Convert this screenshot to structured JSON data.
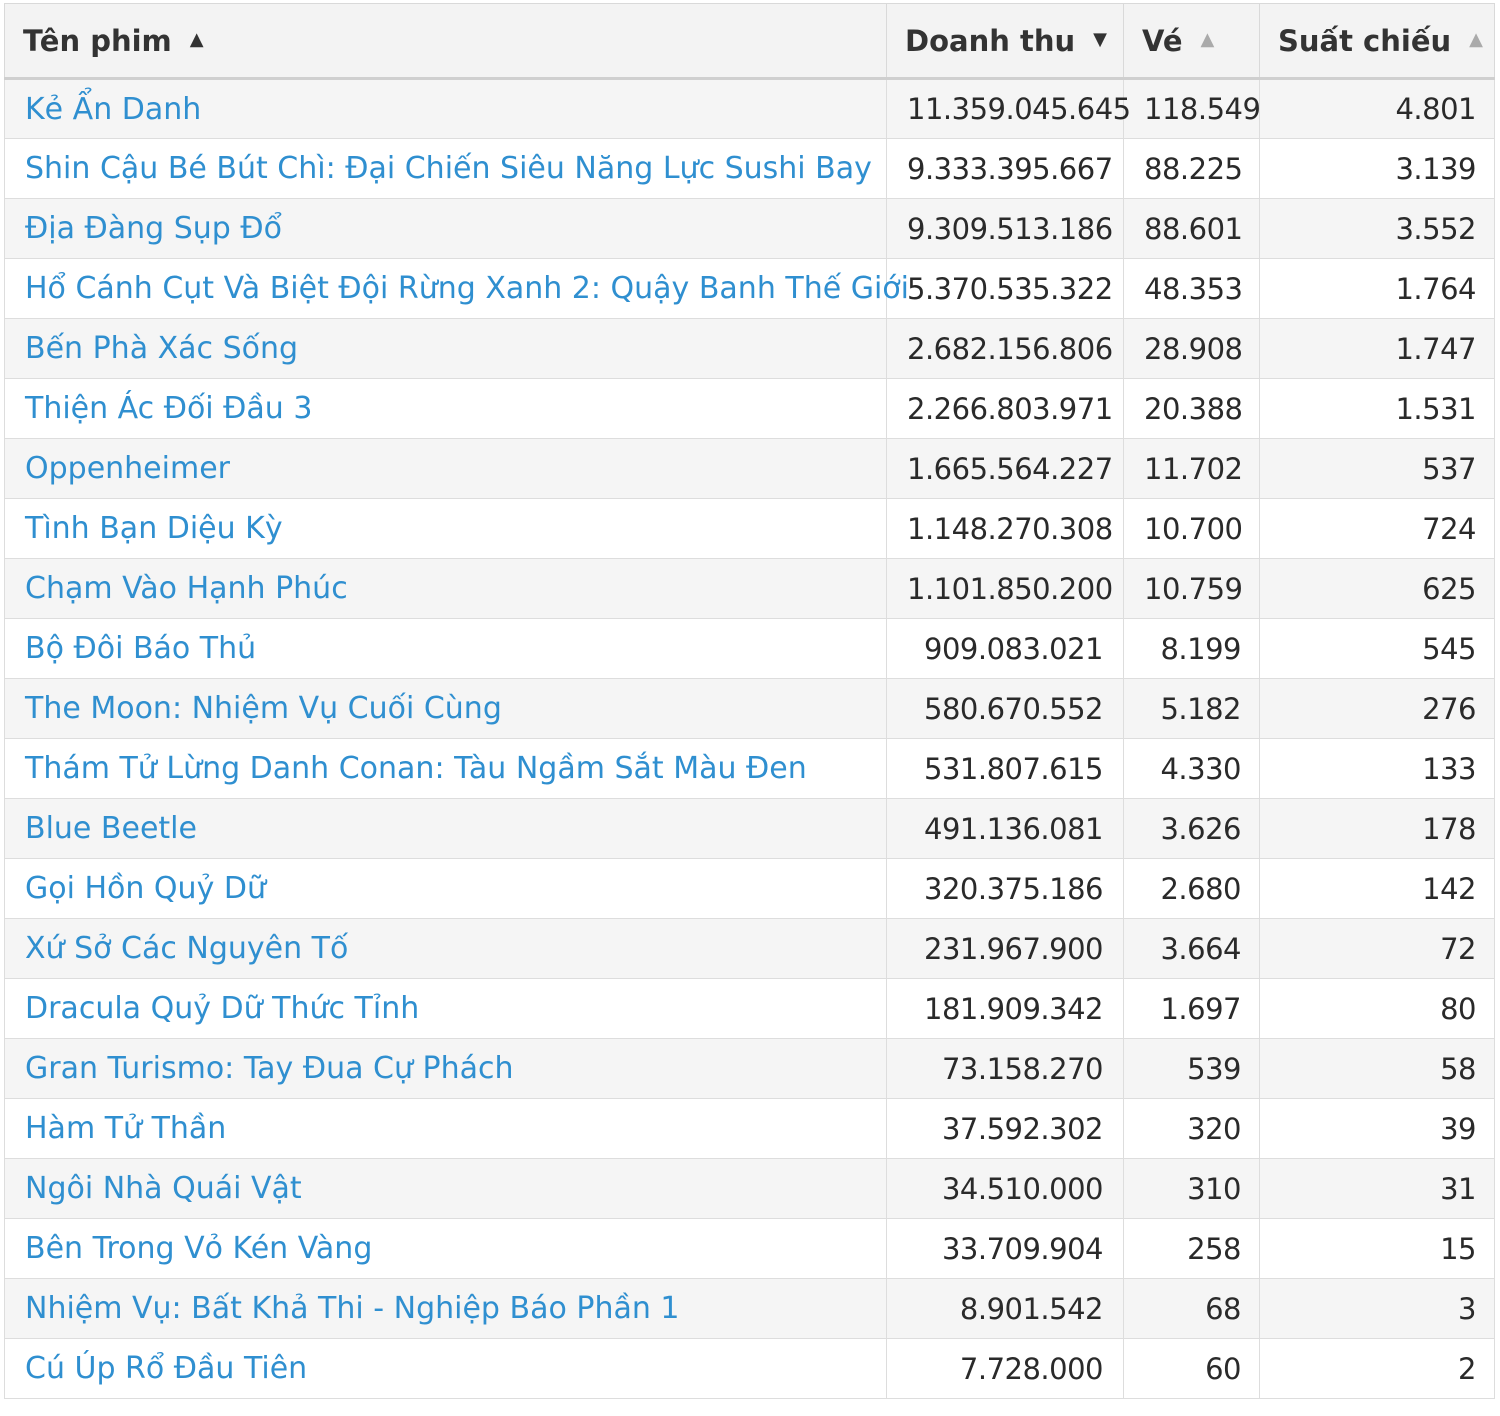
{
  "table": {
    "headers": {
      "title": "Tên phim",
      "revenue": "Doanh thu",
      "tickets": "Vé",
      "showings": "Suất chiếu"
    },
    "sort_icons": {
      "title": "▲",
      "revenue": "▼",
      "tickets": "▲",
      "showings": "▲"
    },
    "rows": [
      {
        "title": "Kẻ Ẩn Danh",
        "revenue": "11.359.045.645",
        "tickets": "118.549",
        "showings": "4.801"
      },
      {
        "title": "Shin Cậu Bé Bút Chì: Đại Chiến Siêu Năng Lực Sushi Bay",
        "revenue": "9.333.395.667",
        "tickets": "88.225",
        "showings": "3.139"
      },
      {
        "title": "Địa Đàng Sụp Đổ",
        "revenue": "9.309.513.186",
        "tickets": "88.601",
        "showings": "3.552"
      },
      {
        "title": "Hổ Cánh Cụt Và Biệt Đội Rừng Xanh 2: Quậy Banh Thế Giới",
        "revenue": "5.370.535.322",
        "tickets": "48.353",
        "showings": "1.764"
      },
      {
        "title": "Bến Phà Xác Sống",
        "revenue": "2.682.156.806",
        "tickets": "28.908",
        "showings": "1.747"
      },
      {
        "title": "Thiện Ác Đối Đầu 3",
        "revenue": "2.266.803.971",
        "tickets": "20.388",
        "showings": "1.531"
      },
      {
        "title": "Oppenheimer",
        "revenue": "1.665.564.227",
        "tickets": "11.702",
        "showings": "537"
      },
      {
        "title": "Tình Bạn Diệu Kỳ",
        "revenue": "1.148.270.308",
        "tickets": "10.700",
        "showings": "724"
      },
      {
        "title": "Chạm Vào Hạnh Phúc",
        "revenue": "1.101.850.200",
        "tickets": "10.759",
        "showings": "625"
      },
      {
        "title": "Bộ Đôi Báo Thủ",
        "revenue": "909.083.021",
        "tickets": "8.199",
        "showings": "545"
      },
      {
        "title": "The Moon: Nhiệm Vụ Cuối Cùng",
        "revenue": "580.670.552",
        "tickets": "5.182",
        "showings": "276"
      },
      {
        "title": "Thám Tử Lừng Danh Conan: Tàu Ngầm Sắt Màu Đen",
        "revenue": "531.807.615",
        "tickets": "4.330",
        "showings": "133"
      },
      {
        "title": "Blue Beetle",
        "revenue": "491.136.081",
        "tickets": "3.626",
        "showings": "178"
      },
      {
        "title": "Gọi Hồn Quỷ Dữ",
        "revenue": "320.375.186",
        "tickets": "2.680",
        "showings": "142"
      },
      {
        "title": "Xứ Sở Các Nguyên Tố",
        "revenue": "231.967.900",
        "tickets": "3.664",
        "showings": "72"
      },
      {
        "title": "Dracula Quỷ Dữ Thức Tỉnh",
        "revenue": "181.909.342",
        "tickets": "1.697",
        "showings": "80"
      },
      {
        "title": "Gran Turismo: Tay Đua Cự Phách",
        "revenue": "73.158.270",
        "tickets": "539",
        "showings": "58"
      },
      {
        "title": "Hàm Tử Thần",
        "revenue": "37.592.302",
        "tickets": "320",
        "showings": "39"
      },
      {
        "title": "Ngôi Nhà Quái Vật",
        "revenue": "34.510.000",
        "tickets": "310",
        "showings": "31"
      },
      {
        "title": "Bên Trong Vỏ Kén Vàng",
        "revenue": "33.709.904",
        "tickets": "258",
        "showings": "15"
      },
      {
        "title": "Nhiệm Vụ: Bất Khả Thi - Nghiệp Báo Phần 1",
        "revenue": "8.901.542",
        "tickets": "68",
        "showings": "3"
      },
      {
        "title": "Cú Úp Rổ Đầu Tiên",
        "revenue": "7.728.000",
        "tickets": "60",
        "showings": "2"
      }
    ]
  }
}
